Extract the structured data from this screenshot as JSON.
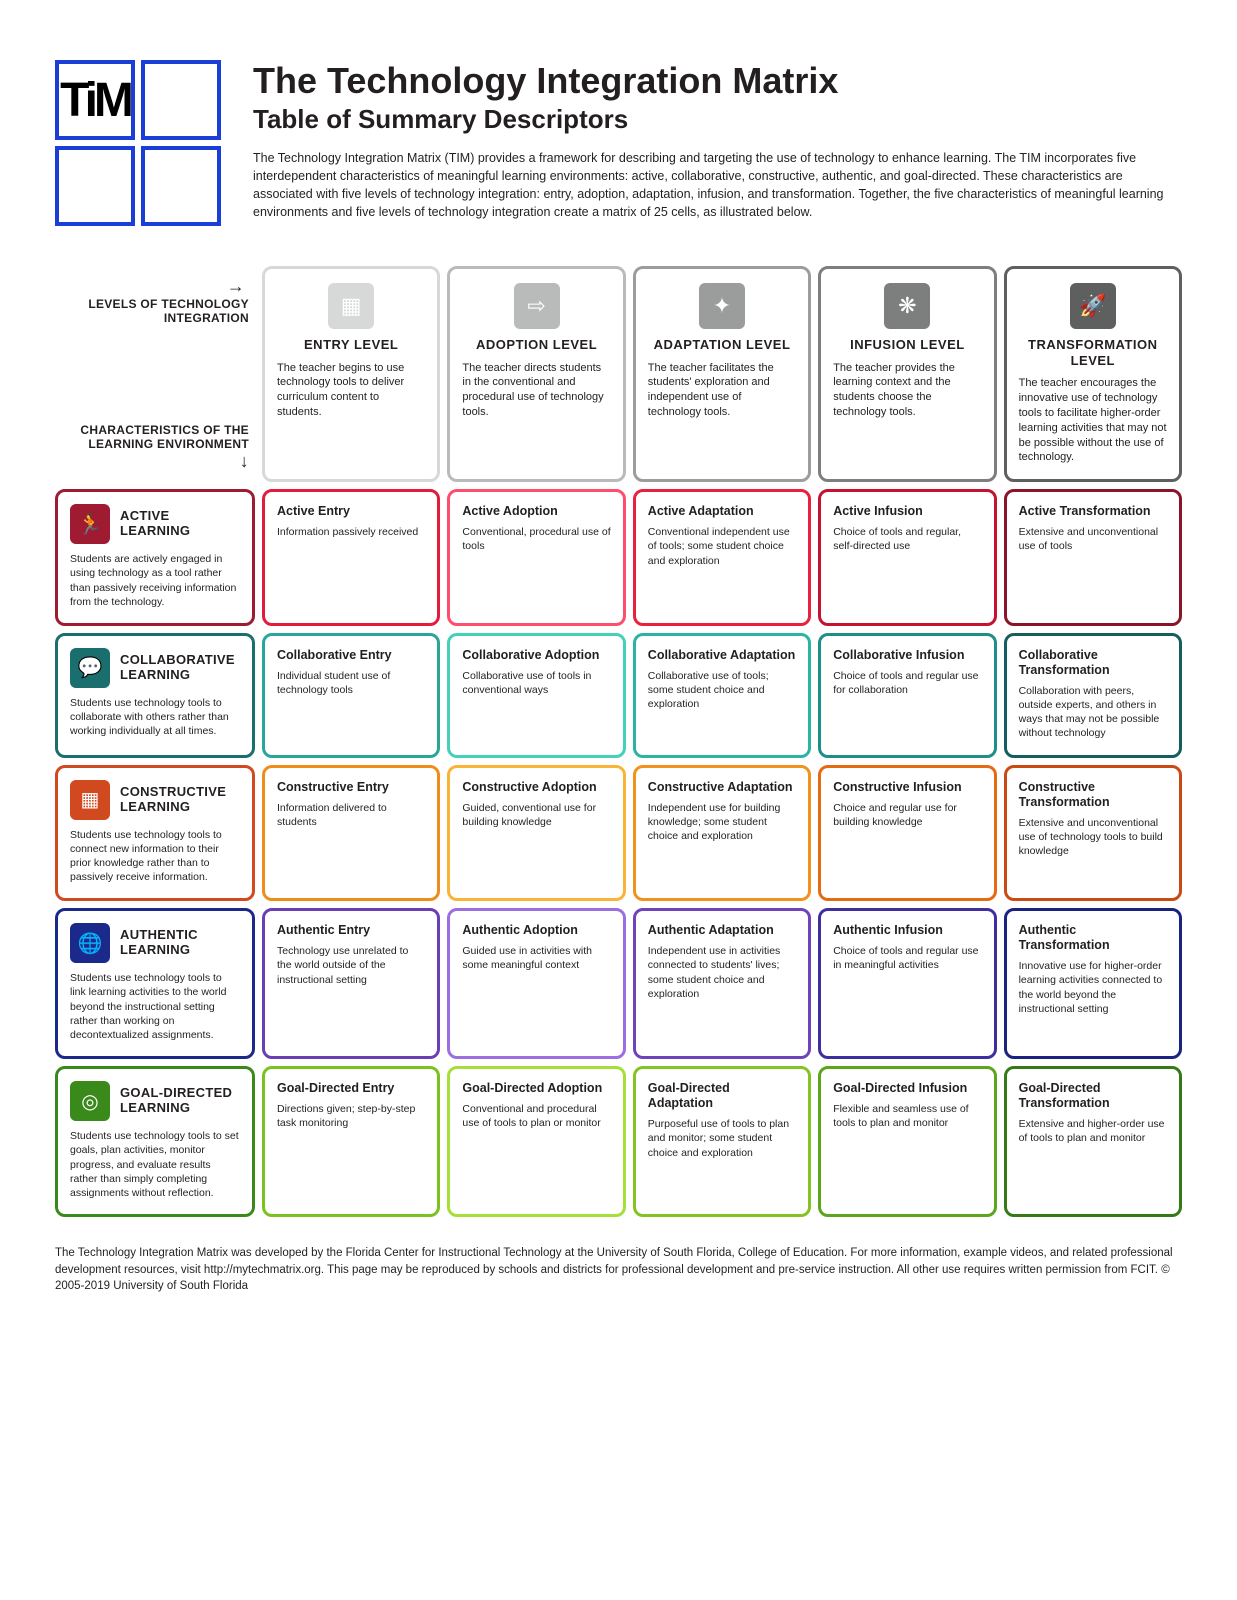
{
  "title": "The Technology Integration Matrix",
  "subtitle": "Table of Summary Descriptors",
  "intro": "The Technology Integration Matrix (TIM) provides a framework for describing and targeting the use of technology to enhance learning. The TIM incorporates five interdependent characteristics of meaningful learning environments: active, collaborative, constructive, authentic, and goal-directed. These characteristics are associated with five levels of technology integration: entry, adoption, adaptation, infusion, and transformation. Together, the five characteristics of meaningful learning environments and five levels of technology integration create a matrix of 25 cells, as illustrated below.",
  "axis_levels": "LEVELS OF TECHNOLOGY INTEGRATION",
  "axis_chars": "CHARACTERISTICS OF THE LEARNING ENVIRONMENT",
  "level_colors": [
    "#d7d9d8",
    "#b9bbba",
    "#9b9d9c",
    "#7d7f7e",
    "#5e605f"
  ],
  "levels": [
    {
      "name": "ENTRY LEVEL",
      "desc": "The teacher begins to use technology tools to deliver curriculum content to students."
    },
    {
      "name": "ADOPTION LEVEL",
      "desc": "The teacher directs students in the conventional and procedural use of technology tools."
    },
    {
      "name": "ADAPTATION LEVEL",
      "desc": "The teacher facilitates the students' exploration and independent use of technology tools."
    },
    {
      "name": "INFUSION LEVEL",
      "desc": "The teacher provides the learning context and the students choose the technology tools."
    },
    {
      "name": "TRANSFORMATION LEVEL",
      "desc": "The teacher encourages the innovative use of technology tools to facilitate higher-order learning activities that may not be possible without the use of technology."
    }
  ],
  "rows": [
    {
      "title": "ACTIVE LEARNING",
      "desc": "Students are actively engaged in using technology as a tool rather than passively receiving information from the technology.",
      "colors": [
        "#9e1b32",
        "#e31c3d",
        "#ff4d6d",
        "#e8213f",
        "#c41230",
        "#8a1528"
      ],
      "cells": [
        {
          "t": "Active Entry",
          "d": "Information passively received"
        },
        {
          "t": "Active Adoption",
          "d": "Conventional, procedural use of tools"
        },
        {
          "t": "Active Adaptation",
          "d": "Conventional independent use of tools; some student choice and exploration"
        },
        {
          "t": "Active Infusion",
          "d": "Choice of tools and regular, self-directed use"
        },
        {
          "t": "Active Transformation",
          "d": "Extensive and unconventional use of tools"
        }
      ]
    },
    {
      "title": "COLLABORATIVE LEARNING",
      "desc": "Students use technology tools to collaborate with others rather than working individually at all times.",
      "colors": [
        "#1b6e6e",
        "#2aa59a",
        "#45d0b8",
        "#2bb3a3",
        "#1e8f86",
        "#155e5e"
      ],
      "cells": [
        {
          "t": "Collaborative Entry",
          "d": "Individual student use of technology tools"
        },
        {
          "t": "Collaborative Adoption",
          "d": "Collaborative use of tools in conventional ways"
        },
        {
          "t": "Collaborative Adaptation",
          "d": "Collaborative use of tools; some student choice and exploration"
        },
        {
          "t": "Collaborative Infusion",
          "d": "Choice of tools and regular use for collaboration"
        },
        {
          "t": "Collaborative Transformation",
          "d": "Collaboration with peers, outside experts, and others in ways that may not be possible without technology"
        }
      ]
    },
    {
      "title": "CONSTRUCTIVE LEARNING",
      "desc": "Students use technology tools to connect new information to their prior knowledge rather than to passively receive information.",
      "colors": [
        "#d1491f",
        "#f08c1a",
        "#f9b437",
        "#f0921c",
        "#e56b12",
        "#c94a13"
      ],
      "cells": [
        {
          "t": "Constructive Entry",
          "d": "Information delivered to students"
        },
        {
          "t": "Constructive Adoption",
          "d": "Guided, conventional use for building knowledge"
        },
        {
          "t": "Constructive Adaptation",
          "d": "Independent use for building knowledge; some student choice and exploration"
        },
        {
          "t": "Constructive Infusion",
          "d": "Choice and regular use for building knowledge"
        },
        {
          "t": "Constructive Transformation",
          "d": "Extensive and unconventional use of technology tools to build knowledge"
        }
      ]
    },
    {
      "title": "AUTHENTIC LEARNING",
      "desc": "Students use technology tools to link learning activities to the world beyond the instructional setting rather than working on decontextualized assignments.",
      "colors": [
        "#1b2a8a",
        "#6a3fb5",
        "#9b6fe0",
        "#6e44bb",
        "#3f2f9e",
        "#1a237e"
      ],
      "cells": [
        {
          "t": "Authentic Entry",
          "d": "Technology use unrelated to the world outside of the instructional setting"
        },
        {
          "t": "Authentic Adoption",
          "d": "Guided use in activities with some meaningful context"
        },
        {
          "t": "Authentic Adaptation",
          "d": "Independent use in activities connected to students' lives; some student choice and exploration"
        },
        {
          "t": "Authentic Infusion",
          "d": "Choice of tools and regular use in meaningful activities"
        },
        {
          "t": "Authentic Transformation",
          "d": "Innovative use for higher-order learning activities connected to the world beyond the instructional setting"
        }
      ]
    },
    {
      "title": "GOAL-DIRECTED LEARNING",
      "desc": "Students use technology tools to set goals, plan activities, monitor progress, and evaluate results rather than simply completing assignments without reflection.",
      "colors": [
        "#3a8a1b",
        "#7bc21e",
        "#a6de3a",
        "#84c323",
        "#5ca51c",
        "#357a16"
      ],
      "cells": [
        {
          "t": "Goal-Directed Entry",
          "d": "Directions given; step-by-step task monitoring"
        },
        {
          "t": "Goal-Directed Adoption",
          "d": "Conventional and procedural use of tools to plan or monitor"
        },
        {
          "t": "Goal-Directed Adaptation",
          "d": "Purposeful use of tools to plan and monitor; some student choice and exploration"
        },
        {
          "t": "Goal-Directed Infusion",
          "d": "Flexible and seamless use of tools to plan and monitor"
        },
        {
          "t": "Goal-Directed Transformation",
          "d": "Extensive and higher-order use of tools to plan and monitor"
        }
      ]
    }
  ],
  "footer": "The Technology Integration Matrix was developed by the Florida Center for Instructional Technology at the University of South Florida, College of Education. For more information, example videos, and related professional development resources, visit http://mytechmatrix.org. This page may be reproduced by schools and districts for professional development and pre-service instruction. All other use requires written permission from FCIT. © 2005-2019 University of South Florida",
  "icons": {
    "levels": [
      "▦",
      "⇨",
      "✦",
      "❋",
      "🚀"
    ],
    "chars": [
      "🏃",
      "💬",
      "▦",
      "🌐",
      "◎"
    ]
  }
}
